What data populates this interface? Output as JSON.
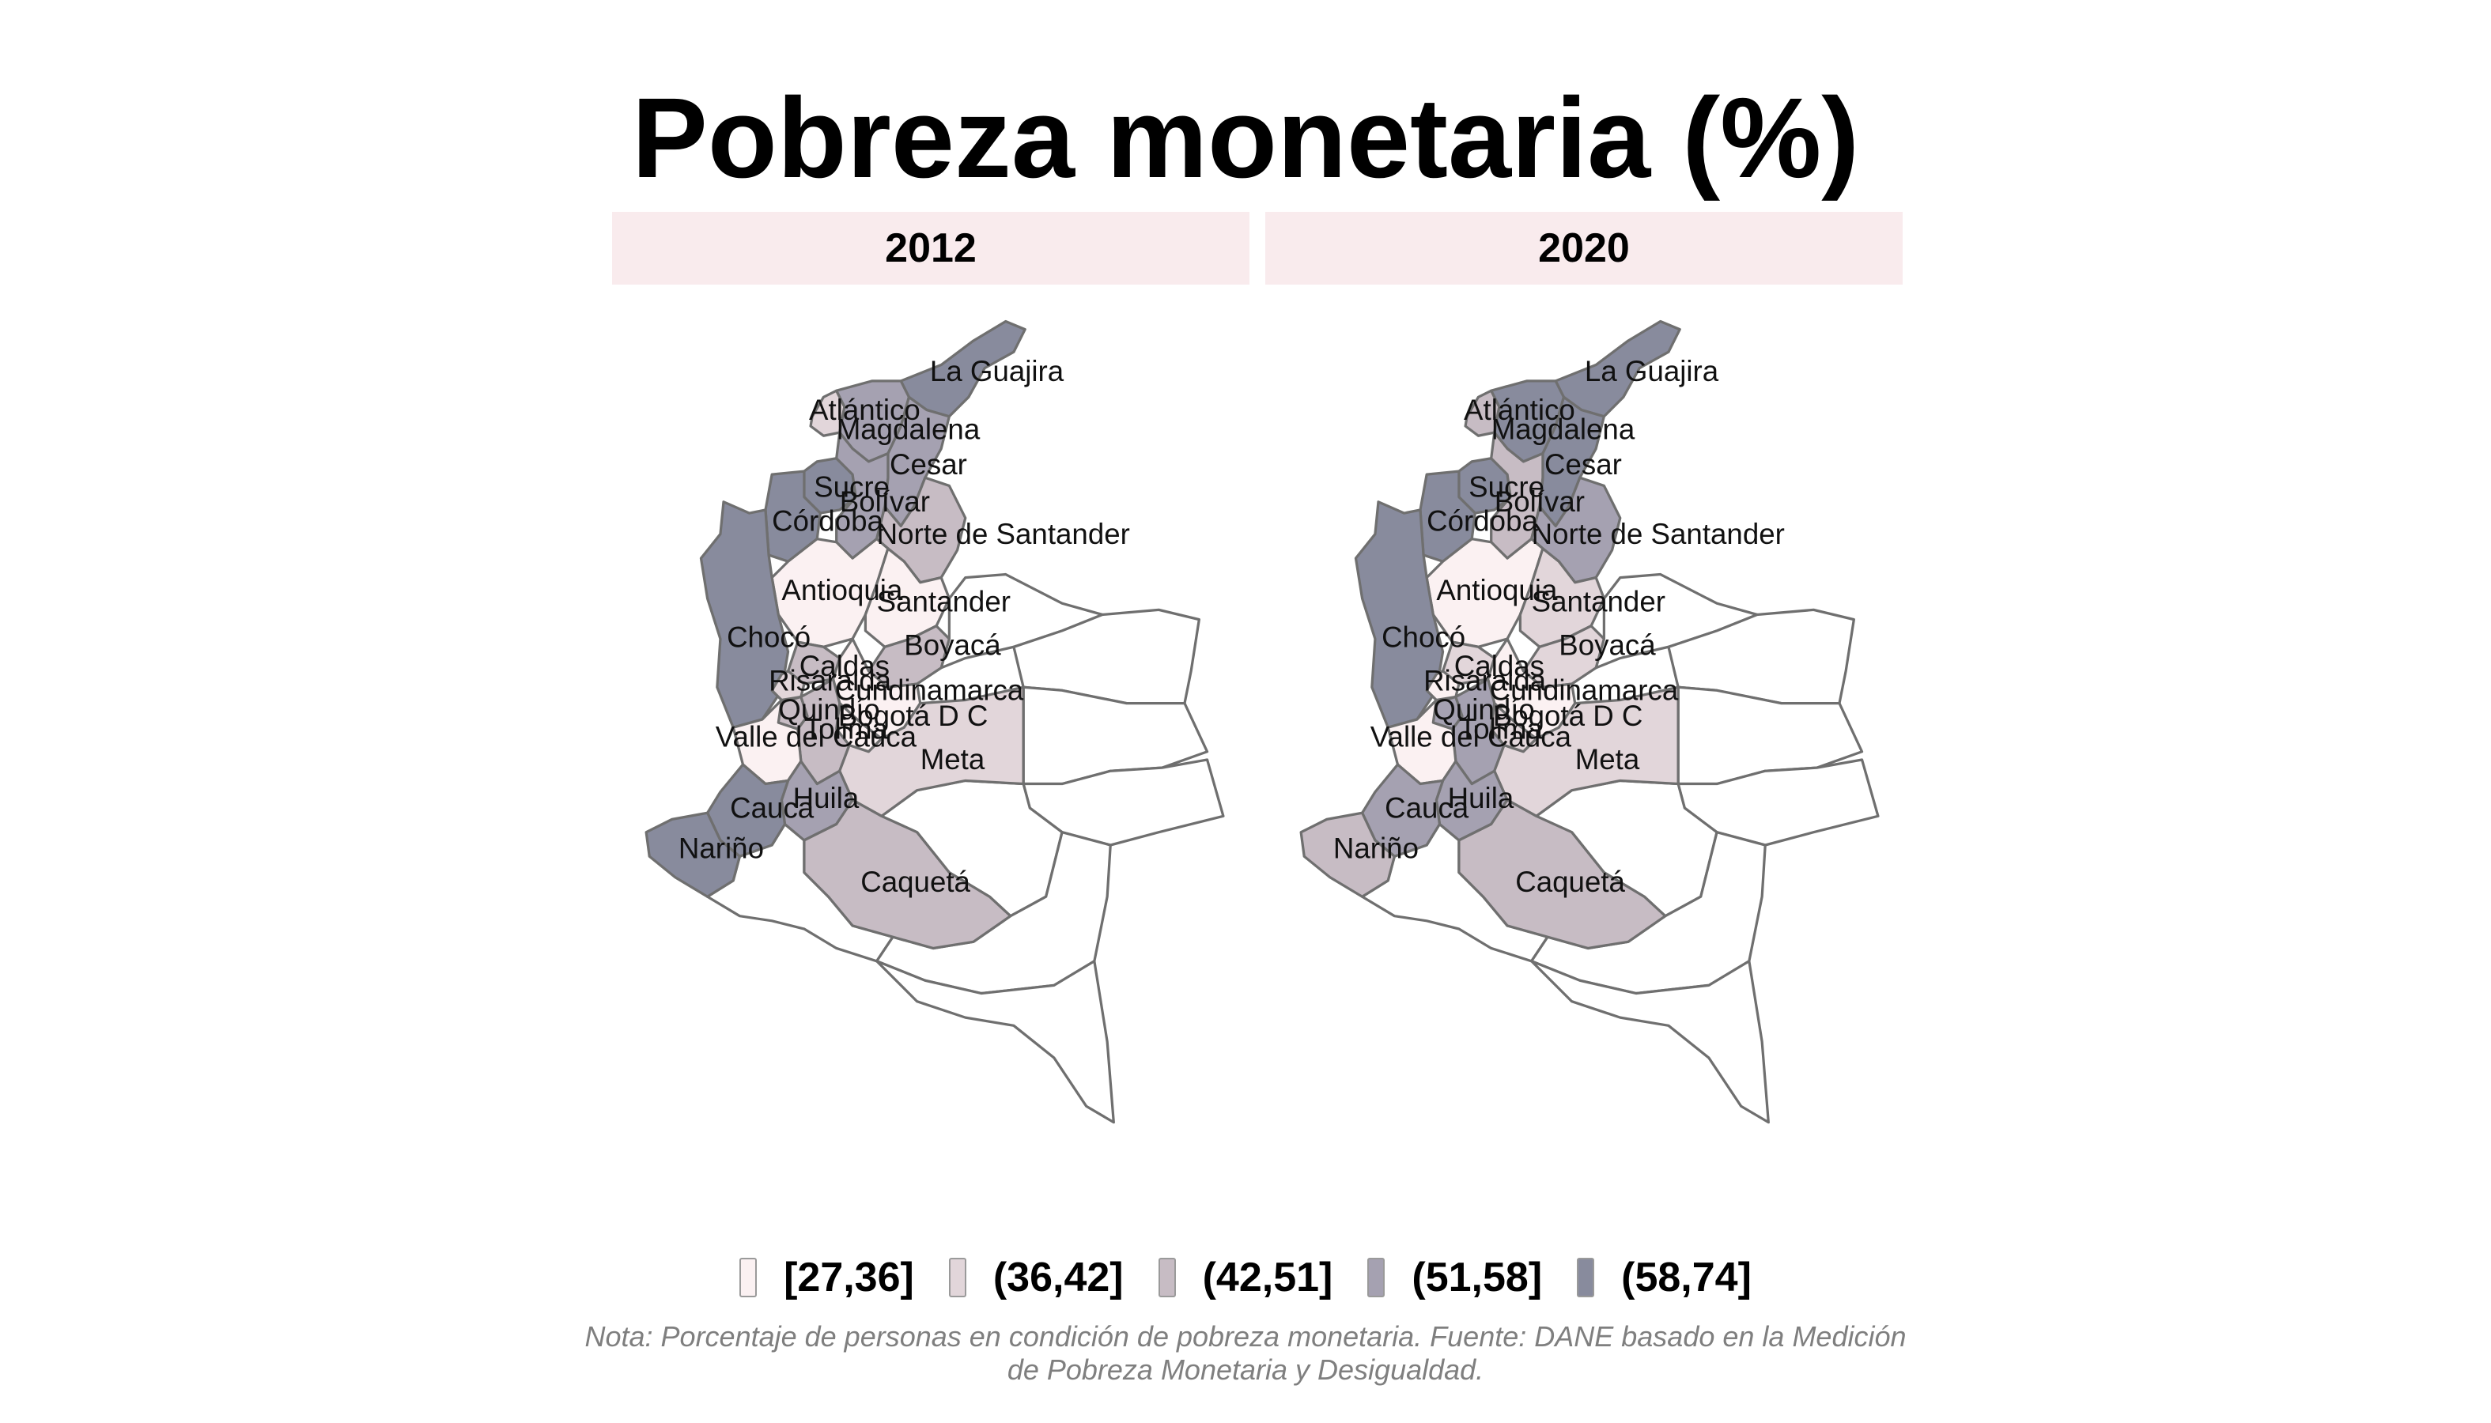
{
  "title": "Pobreza monetaria (%)",
  "panels": [
    {
      "year": "2012",
      "values": {
        "la_guajira": "(58,74]",
        "magdalena": "(51,58]",
        "atlantico": "(36,42]",
        "cesar": "(51,58]",
        "sucre": "(58,74]",
        "bolivar": "(51,58]",
        "cordoba": "(58,74]",
        "norte_de_santander": "(42,51]",
        "antioquia": "[27,36]",
        "santander": "[27,36]",
        "choco": "(58,74]",
        "boyaca": "(42,51]",
        "caldas": "(42,51]",
        "risaralda": "(36,42]",
        "cundinamarca": "[27,36]",
        "quindio": "(42,51]",
        "bogota": "[27,36]",
        "tolima": "(42,51]",
        "valle_del_cauca": "[27,36]",
        "meta": "(36,42]",
        "huila": "(51,58]",
        "cauca": "(58,74]",
        "narino": "(58,74]",
        "caqueta": "(42,51]"
      }
    },
    {
      "year": "2020",
      "values": {
        "la_guajira": "(58,74]",
        "magdalena": "(58,74]",
        "atlantico": "(42,51]",
        "cesar": "(58,74]",
        "sucre": "(58,74]",
        "bolivar": "(42,51]",
        "cordoba": "(58,74]",
        "norte_de_santander": "(51,58]",
        "antioquia": "[27,36]",
        "santander": "(36,42]",
        "choco": "(58,74]",
        "boyaca": "(36,42]",
        "caldas": "(36,42]",
        "risaralda": "[27,36]",
        "cundinamarca": "[27,36]",
        "quindio": "(51,58]",
        "bogota": "(36,42]",
        "tolima": "(51,58]",
        "valle_del_cauca": "[27,36]",
        "meta": "(36,42]",
        "huila": "(51,58]",
        "cauca": "(51,58]",
        "narino": "(42,51]",
        "caqueta": "(42,51]"
      }
    }
  ],
  "departments": [
    {
      "id": "la_guajira",
      "label": "La Guajira"
    },
    {
      "id": "atlantico",
      "label": "Atlántico"
    },
    {
      "id": "magdalena",
      "label": "Magdalena"
    },
    {
      "id": "cesar",
      "label": "Cesar"
    },
    {
      "id": "sucre",
      "label": "Sucre"
    },
    {
      "id": "bolivar",
      "label": "Bolívar"
    },
    {
      "id": "cordoba",
      "label": "Córdoba"
    },
    {
      "id": "norte_de_santander",
      "label": "Norte de Santander"
    },
    {
      "id": "antioquia",
      "label": "Antioquia"
    },
    {
      "id": "santander",
      "label": "Santander"
    },
    {
      "id": "choco",
      "label": "Chocó"
    },
    {
      "id": "boyaca",
      "label": "Boyacá"
    },
    {
      "id": "caldas",
      "label": "Caldas"
    },
    {
      "id": "risaralda",
      "label": "Risaralda"
    },
    {
      "id": "cundinamarca",
      "label": "Cundinamarca"
    },
    {
      "id": "quindio",
      "label": "Quindío"
    },
    {
      "id": "bogota",
      "label": "Bogotá D C"
    },
    {
      "id": "tolima",
      "label": "Tolima"
    },
    {
      "id": "valle_del_cauca",
      "label": "Valle del Cauca"
    },
    {
      "id": "meta",
      "label": "Meta"
    },
    {
      "id": "huila",
      "label": "Huila"
    },
    {
      "id": "cauca",
      "label": "Cauca"
    },
    {
      "id": "narino",
      "label": "Nariño"
    },
    {
      "id": "caqueta",
      "label": "Caquetá"
    }
  ],
  "legend": [
    {
      "label": "[27,36]",
      "color": "#fbf1f2"
    },
    {
      "label": "(36,42]",
      "color": "#e2d6da"
    },
    {
      "label": "(42,51]",
      "color": "#c7bcc4"
    },
    {
      "label": "(51,58]",
      "color": "#a5a1b1"
    },
    {
      "label": "(58,74]",
      "color": "#888b9d"
    }
  ],
  "no_data_color": "#ffffff",
  "note": {
    "line1": "Nota: Porcentaje de personas en condición de pobreza monetaria. Fuente: DANE basado en la Medición",
    "line2": "de Pobreza Monetaria y Desigualdad."
  }
}
